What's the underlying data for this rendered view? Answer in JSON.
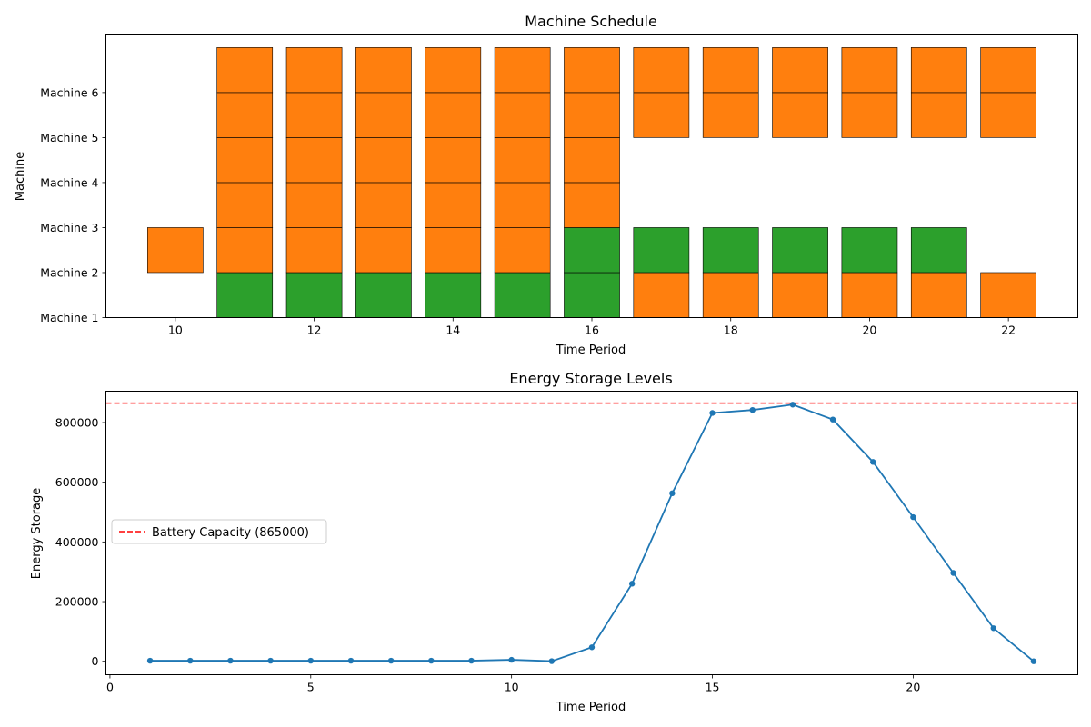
{
  "chart_data": [
    {
      "type": "bar",
      "title": "Machine Schedule",
      "xlabel": "Time Period",
      "ylabel": "Machine",
      "xlim": [
        9,
        23
      ],
      "xticks": [
        10,
        12,
        14,
        16,
        18,
        20,
        22
      ],
      "yticks": [
        "Machine 1",
        "Machine 2",
        "Machine 3",
        "Machine 4",
        "Machine 5",
        "Machine 6"
      ],
      "ylim": [
        1,
        7.3
      ],
      "colors": {
        "orange": "#ff7f0e",
        "green": "#2ca02c"
      },
      "blocks": [
        {
          "t": 10,
          "start": 2,
          "color": "orange"
        },
        {
          "t": 11,
          "start": 1,
          "color": "green"
        },
        {
          "t": 11,
          "start": 2,
          "color": "orange"
        },
        {
          "t": 11,
          "start": 3,
          "color": "orange"
        },
        {
          "t": 11,
          "start": 4,
          "color": "orange"
        },
        {
          "t": 11,
          "start": 5,
          "color": "orange"
        },
        {
          "t": 11,
          "start": 6,
          "color": "orange"
        },
        {
          "t": 12,
          "start": 1,
          "color": "green"
        },
        {
          "t": 12,
          "start": 2,
          "color": "orange"
        },
        {
          "t": 12,
          "start": 3,
          "color": "orange"
        },
        {
          "t": 12,
          "start": 4,
          "color": "orange"
        },
        {
          "t": 12,
          "start": 5,
          "color": "orange"
        },
        {
          "t": 12,
          "start": 6,
          "color": "orange"
        },
        {
          "t": 13,
          "start": 1,
          "color": "green"
        },
        {
          "t": 13,
          "start": 2,
          "color": "orange"
        },
        {
          "t": 13,
          "start": 3,
          "color": "orange"
        },
        {
          "t": 13,
          "start": 4,
          "color": "orange"
        },
        {
          "t": 13,
          "start": 5,
          "color": "orange"
        },
        {
          "t": 13,
          "start": 6,
          "color": "orange"
        },
        {
          "t": 14,
          "start": 1,
          "color": "green"
        },
        {
          "t": 14,
          "start": 2,
          "color": "orange"
        },
        {
          "t": 14,
          "start": 3,
          "color": "orange"
        },
        {
          "t": 14,
          "start": 4,
          "color": "orange"
        },
        {
          "t": 14,
          "start": 5,
          "color": "orange"
        },
        {
          "t": 14,
          "start": 6,
          "color": "orange"
        },
        {
          "t": 15,
          "start": 1,
          "color": "green"
        },
        {
          "t": 15,
          "start": 2,
          "color": "orange"
        },
        {
          "t": 15,
          "start": 3,
          "color": "orange"
        },
        {
          "t": 15,
          "start": 4,
          "color": "orange"
        },
        {
          "t": 15,
          "start": 5,
          "color": "orange"
        },
        {
          "t": 15,
          "start": 6,
          "color": "orange"
        },
        {
          "t": 16,
          "start": 1,
          "color": "green"
        },
        {
          "t": 16,
          "start": 2,
          "color": "green"
        },
        {
          "t": 16,
          "start": 3,
          "color": "orange"
        },
        {
          "t": 16,
          "start": 4,
          "color": "orange"
        },
        {
          "t": 16,
          "start": 5,
          "color": "orange"
        },
        {
          "t": 16,
          "start": 6,
          "color": "orange"
        },
        {
          "t": 17,
          "start": 1,
          "color": "orange"
        },
        {
          "t": 17,
          "start": 2,
          "color": "green"
        },
        {
          "t": 17,
          "start": 5,
          "color": "orange"
        },
        {
          "t": 17,
          "start": 6,
          "color": "orange"
        },
        {
          "t": 18,
          "start": 1,
          "color": "orange"
        },
        {
          "t": 18,
          "start": 2,
          "color": "green"
        },
        {
          "t": 18,
          "start": 5,
          "color": "orange"
        },
        {
          "t": 18,
          "start": 6,
          "color": "orange"
        },
        {
          "t": 19,
          "start": 1,
          "color": "orange"
        },
        {
          "t": 19,
          "start": 2,
          "color": "green"
        },
        {
          "t": 19,
          "start": 5,
          "color": "orange"
        },
        {
          "t": 19,
          "start": 6,
          "color": "orange"
        },
        {
          "t": 20,
          "start": 1,
          "color": "orange"
        },
        {
          "t": 20,
          "start": 2,
          "color": "green"
        },
        {
          "t": 20,
          "start": 5,
          "color": "orange"
        },
        {
          "t": 20,
          "start": 6,
          "color": "orange"
        },
        {
          "t": 21,
          "start": 1,
          "color": "orange"
        },
        {
          "t": 21,
          "start": 2,
          "color": "green"
        },
        {
          "t": 21,
          "start": 5,
          "color": "orange"
        },
        {
          "t": 21,
          "start": 6,
          "color": "orange"
        },
        {
          "t": 22,
          "start": 1,
          "color": "orange"
        },
        {
          "t": 22,
          "start": 5,
          "color": "orange"
        },
        {
          "t": 22,
          "start": 6,
          "color": "orange"
        }
      ]
    },
    {
      "type": "line",
      "title": "Energy Storage Levels",
      "xlabel": "Time Period",
      "ylabel": "Energy Storage",
      "xlim": [
        -0.1,
        24.1
      ],
      "ylim": [
        -45000,
        905000
      ],
      "xticks": [
        0,
        5,
        10,
        15,
        20
      ],
      "yticks": [
        0,
        200000,
        400000,
        600000,
        800000
      ],
      "grid": false,
      "legend_position": "center-left",
      "x": [
        1,
        2,
        3,
        4,
        5,
        6,
        7,
        8,
        9,
        10,
        11,
        12,
        13,
        14,
        15,
        16,
        17,
        18,
        19,
        20,
        21,
        22,
        23
      ],
      "series": [
        {
          "values": [
            2000,
            2000,
            2000,
            2000,
            2000,
            2000,
            2000,
            2000,
            2000,
            5000,
            500,
            47000,
            260000,
            563000,
            832000,
            842000,
            860000,
            810000,
            668000,
            483000,
            296000,
            111000,
            0
          ],
          "color": "#1f77b4"
        }
      ],
      "hline": {
        "value": 865000,
        "label": "Battery Capacity (865000)",
        "color": "#ff0000",
        "style": "dashed"
      }
    }
  ]
}
